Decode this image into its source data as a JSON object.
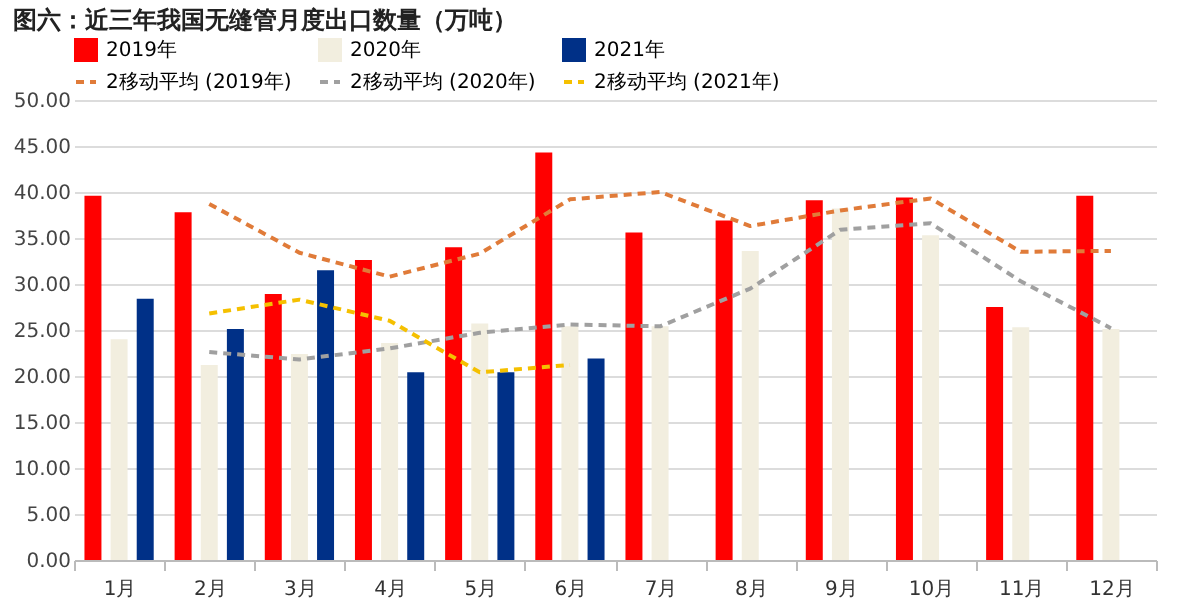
{
  "chart_data": {
    "type": "bar",
    "title": "图六：近三年我国无缝管月度出口数量（万吨）",
    "categories": [
      "1月",
      "2月",
      "3月",
      "4月",
      "5月",
      "6月",
      "7月",
      "8月",
      "9月",
      "10月",
      "11月",
      "12月"
    ],
    "series": [
      {
        "name": "2019年",
        "type": "bar",
        "color": "#ff0000",
        "values": [
          39.6,
          37.8,
          28.9,
          32.6,
          34.0,
          44.3,
          35.6,
          36.9,
          39.1,
          39.4,
          27.5,
          39.6
        ]
      },
      {
        "name": "2020年",
        "type": "bar",
        "color": "#f2eedf",
        "values": [
          24.0,
          21.2,
          22.4,
          23.6,
          25.7,
          25.4,
          25.4,
          33.6,
          38.2,
          35.3,
          25.3,
          25.1
        ]
      },
      {
        "name": "2021年",
        "type": "bar",
        "color": "#003087",
        "values": [
          28.4,
          25.1,
          31.5,
          20.4,
          20.4,
          21.9,
          null,
          null,
          null,
          null,
          null,
          null
        ]
      },
      {
        "name": "2移动平均 (2019年)",
        "type": "line",
        "line_style": "dashed",
        "color": "#e07b39",
        "values": [
          null,
          38.7,
          33.4,
          30.8,
          33.3,
          39.2,
          40.0,
          36.3,
          38.0,
          39.3,
          33.5,
          33.6
        ]
      },
      {
        "name": "2移动平均 (2020年)",
        "type": "line",
        "line_style": "dashed",
        "color": "#a0a0a0",
        "values": [
          null,
          22.6,
          21.8,
          23.0,
          24.7,
          25.6,
          25.4,
          29.5,
          35.9,
          36.6,
          30.3,
          25.2
        ]
      },
      {
        "name": "2移动平均 (2021年)",
        "type": "line",
        "line_style": "dashed",
        "color": "#f5c000",
        "values": [
          null,
          26.8,
          28.3,
          26.0,
          20.4,
          21.2,
          null,
          null,
          null,
          null,
          null,
          null
        ]
      }
    ],
    "ylim": [
      0,
      50
    ],
    "yticks": [
      {
        "value": 0,
        "label": "0.00"
      },
      {
        "value": 5,
        "label": "5.00"
      },
      {
        "value": 10,
        "label": "10.00"
      },
      {
        "value": 15,
        "label": "15.00"
      },
      {
        "value": 20,
        "label": "20.00"
      },
      {
        "value": 25,
        "label": "25.00"
      },
      {
        "value": 30,
        "label": "30.00"
      },
      {
        "value": 35,
        "label": "35.00"
      },
      {
        "value": 40,
        "label": "40.00"
      },
      {
        "value": 45,
        "label": "45.00"
      },
      {
        "value": 50,
        "label": "50.00"
      }
    ],
    "grid": "y",
    "legend": "top"
  }
}
